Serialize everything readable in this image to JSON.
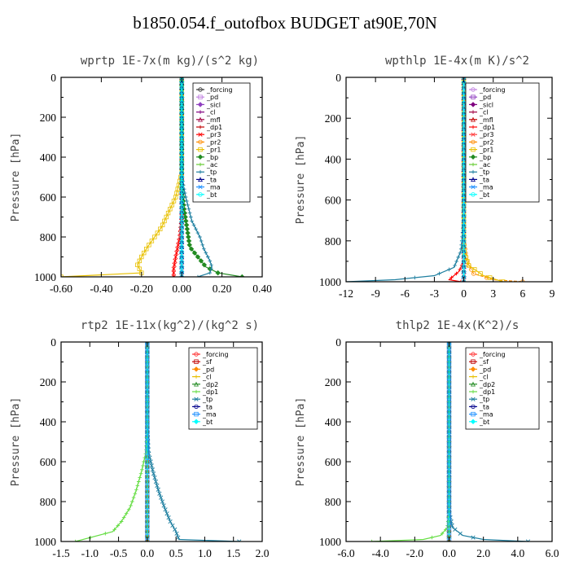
{
  "title": "b1850.054.f_outofbox  BUDGET at90E,70N",
  "chart_data": [
    {
      "type": "line",
      "title": "wprtp  1E-7x(m kg)/(s^2 kg)",
      "ylabel": "Pressure [hPa]",
      "xlim": [
        -0.6,
        0.4
      ],
      "ylim": [
        1000,
        0
      ],
      "xticks": [
        "-0.60",
        "-0.40",
        "-0.20",
        "0.00",
        "0.20",
        "0.40"
      ],
      "yticks": [
        "0",
        "200",
        "400",
        "600",
        "800",
        "1000"
      ],
      "legend_position": "top-right",
      "series": [
        {
          "name": "_forcing",
          "color": "#333333",
          "x": [
            0,
            0
          ],
          "y": [
            0,
            1000
          ]
        },
        {
          "name": "_pd",
          "color": "#c080e0",
          "x": [
            0,
            0
          ],
          "y": [
            0,
            1000
          ]
        },
        {
          "name": "_sicl",
          "color": "#9040c0",
          "x": [
            0,
            0
          ],
          "y": [
            0,
            1000
          ]
        },
        {
          "name": "_cl",
          "color": "#800080",
          "x": [
            0,
            0
          ],
          "y": [
            0,
            1000
          ]
        },
        {
          "name": "_mfl",
          "color": "#a00040",
          "x": [
            0,
            0
          ],
          "y": [
            0,
            1000
          ]
        },
        {
          "name": "_dp1",
          "color": "#c00000",
          "x": [
            0,
            0
          ],
          "y": [
            0,
            1000
          ]
        },
        {
          "name": "_pr3",
          "color": "#ff0000",
          "x": [
            0,
            0,
            -0.01,
            -0.03,
            -0.04,
            -0.04
          ],
          "y": [
            0,
            700,
            800,
            900,
            960,
            1000
          ]
        },
        {
          "name": "_pr2",
          "color": "#ff8c00",
          "x": [
            0,
            0
          ],
          "y": [
            0,
            1000
          ]
        },
        {
          "name": "_pr1",
          "color": "#e8c000",
          "x": [
            0,
            0,
            -0.03,
            -0.1,
            -0.17,
            -0.2,
            -0.22,
            -0.2,
            -0.6
          ],
          "y": [
            0,
            480,
            600,
            750,
            850,
            900,
            940,
            980,
            1000
          ]
        },
        {
          "name": "_bp",
          "color": "#228b22",
          "x": [
            0,
            0,
            0.01,
            0.03,
            0.04,
            0.08,
            0.12,
            0.18,
            0.3
          ],
          "y": [
            0,
            500,
            650,
            780,
            850,
            900,
            950,
            980,
            1000
          ]
        },
        {
          "name": "_ac",
          "color": "#66cc33",
          "x": [
            0,
            0
          ],
          "y": [
            0,
            1000
          ]
        },
        {
          "name": "_tp",
          "color": "#1e7fa0",
          "x": [
            0,
            0,
            0.02,
            0.05,
            0.09,
            0.11,
            0.14,
            0.15,
            0.14,
            0.08
          ],
          "y": [
            0,
            500,
            600,
            720,
            800,
            860,
            920,
            950,
            980,
            1000
          ]
        },
        {
          "name": "_ta",
          "color": "#00008b",
          "x": [
            0,
            0
          ],
          "y": [
            0,
            1000
          ]
        },
        {
          "name": "_ma",
          "color": "#1e90ff",
          "x": [
            0,
            0
          ],
          "y": [
            0,
            1000
          ]
        },
        {
          "name": "_bt",
          "color": "#00ffff",
          "x": [
            0,
            0
          ],
          "y": [
            0,
            1000
          ]
        }
      ]
    },
    {
      "type": "line",
      "title": "wpthlp  1E-4x(m K)/s^2",
      "ylabel": "Pressure [hPa]",
      "xlim": [
        -12,
        9
      ],
      "ylim": [
        1000,
        0
      ],
      "xticks": [
        "-12",
        "-9",
        "-6",
        "-3",
        "0",
        "3",
        "6",
        "9"
      ],
      "yticks": [
        "0",
        "200",
        "400",
        "600",
        "800",
        "1000"
      ],
      "legend_position": "top-right",
      "series": [
        {
          "name": "_forcing",
          "color": "#c080e0",
          "x": [
            0,
            0
          ],
          "y": [
            0,
            1000
          ]
        },
        {
          "name": "_pd",
          "color": "#9040c0",
          "x": [
            0,
            0
          ],
          "y": [
            0,
            1000
          ]
        },
        {
          "name": "_sicl",
          "color": "#800080",
          "x": [
            0,
            0
          ],
          "y": [
            0,
            1000
          ]
        },
        {
          "name": "_cl",
          "color": "#a00040",
          "x": [
            0,
            0
          ],
          "y": [
            0,
            1000
          ]
        },
        {
          "name": "_mfl",
          "color": "#c00000",
          "x": [
            0,
            0
          ],
          "y": [
            0,
            1000
          ]
        },
        {
          "name": "_dp1",
          "color": "#ff0000",
          "x": [
            0,
            0,
            -0.5,
            -1.5,
            -0.3
          ],
          "y": [
            0,
            900,
            950,
            990,
            1000
          ]
        },
        {
          "name": "_pr3",
          "color": "#ff4040",
          "x": [
            0,
            0
          ],
          "y": [
            0,
            1000
          ]
        },
        {
          "name": "_pr2",
          "color": "#ff8c00",
          "x": [
            0,
            0,
            0.3,
            1,
            3,
            6
          ],
          "y": [
            0,
            800,
            900,
            960,
            990,
            1000
          ]
        },
        {
          "name": "_pr1",
          "color": "#e8c000",
          "x": [
            0,
            0,
            0.5,
            2,
            4
          ],
          "y": [
            0,
            850,
            920,
            970,
            1000
          ]
        },
        {
          "name": "_bp",
          "color": "#228b22",
          "x": [
            0,
            0
          ],
          "y": [
            0,
            1000
          ]
        },
        {
          "name": "_ac",
          "color": "#66cc33",
          "x": [
            0,
            0
          ],
          "y": [
            0,
            1000
          ]
        },
        {
          "name": "_tp",
          "color": "#1e7fa0",
          "x": [
            0,
            0,
            -0.3,
            -1,
            -3,
            -7,
            -12
          ],
          "y": [
            0,
            700,
            850,
            930,
            970,
            990,
            1000
          ]
        },
        {
          "name": "_ta",
          "color": "#00008b",
          "x": [
            0,
            0
          ],
          "y": [
            0,
            1000
          ]
        },
        {
          "name": "_ma",
          "color": "#1e90ff",
          "x": [
            0,
            0
          ],
          "y": [
            0,
            1000
          ]
        },
        {
          "name": "_bt",
          "color": "#00ffff",
          "x": [
            0,
            0
          ],
          "y": [
            0,
            1000
          ]
        }
      ]
    },
    {
      "type": "line",
      "title": "rtp2  1E-11x(kg^2)/(kg^2 s)",
      "ylabel": "Pressure [hPa]",
      "xlim": [
        -1.5,
        2.0
      ],
      "ylim": [
        1000,
        0
      ],
      "xticks": [
        "-1.5",
        "-1.0",
        "-0.5",
        "0.0",
        "0.5",
        "1.0",
        "1.5",
        "2.0"
      ],
      "yticks": [
        "0",
        "200",
        "400",
        "600",
        "800",
        "1000"
      ],
      "legend_position": "top-right",
      "series": [
        {
          "name": "_forcing",
          "color": "#ff3030",
          "x": [
            0,
            0
          ],
          "y": [
            0,
            1000
          ]
        },
        {
          "name": "_sf",
          "color": "#c00000",
          "x": [
            0,
            0
          ],
          "y": [
            0,
            1000
          ]
        },
        {
          "name": "_pd",
          "color": "#ff8c00",
          "x": [
            0,
            0
          ],
          "y": [
            0,
            1000
          ]
        },
        {
          "name": "_cl",
          "color": "#e8c000",
          "x": [
            0,
            0
          ],
          "y": [
            0,
            1000
          ]
        },
        {
          "name": "_dp2",
          "color": "#228b22",
          "x": [
            0,
            0
          ],
          "y": [
            0,
            1000
          ]
        },
        {
          "name": "_dp1",
          "color": "#66dd44",
          "x": [
            0,
            0,
            -0.02,
            -0.1,
            -0.2,
            -0.3,
            -0.45,
            -0.6,
            -1.25
          ],
          "y": [
            0,
            400,
            550,
            650,
            750,
            830,
            900,
            950,
            1000
          ]
        },
        {
          "name": "_tp",
          "color": "#1e7fa0",
          "x": [
            0,
            0,
            0.02,
            0.1,
            0.2,
            0.3,
            0.4,
            0.5,
            0.55,
            1.6
          ],
          "y": [
            0,
            400,
            550,
            650,
            750,
            830,
            900,
            950,
            990,
            1000
          ]
        },
        {
          "name": "_ta",
          "color": "#00008b",
          "x": [
            0,
            0
          ],
          "y": [
            0,
            1000
          ]
        },
        {
          "name": "_ma",
          "color": "#1e90ff",
          "x": [
            0,
            0
          ],
          "y": [
            0,
            1000
          ]
        },
        {
          "name": "_bt",
          "color": "#00ffff",
          "x": [
            0,
            0
          ],
          "y": [
            0,
            1000
          ]
        }
      ]
    },
    {
      "type": "line",
      "title": "thlp2  1E-4x(K^2)/s",
      "ylabel": "Pressure [hPa]",
      "xlim": [
        -6,
        6
      ],
      "ylim": [
        1000,
        0
      ],
      "xticks": [
        "-6.0",
        "-4.0",
        "-2.0",
        "0.0",
        "2.0",
        "4.0",
        "6.0"
      ],
      "yticks": [
        "0",
        "200",
        "400",
        "600",
        "800",
        "1000"
      ],
      "legend_position": "top-right",
      "series": [
        {
          "name": "_forcing",
          "color": "#ff3030",
          "x": [
            0,
            0
          ],
          "y": [
            0,
            1000
          ]
        },
        {
          "name": "_sf",
          "color": "#c00000",
          "x": [
            0,
            0
          ],
          "y": [
            0,
            1000
          ]
        },
        {
          "name": "_pd",
          "color": "#ff8c00",
          "x": [
            0,
            0
          ],
          "y": [
            0,
            1000
          ]
        },
        {
          "name": "_cl",
          "color": "#e8c000",
          "x": [
            0,
            0
          ],
          "y": [
            0,
            1000
          ]
        },
        {
          "name": "_dp2",
          "color": "#228b22",
          "x": [
            0,
            0
          ],
          "y": [
            0,
            1000
          ]
        },
        {
          "name": "_dp1",
          "color": "#66dd44",
          "x": [
            0,
            0,
            -0.1,
            -0.5,
            -1.5,
            -4.5
          ],
          "y": [
            0,
            850,
            930,
            970,
            990,
            1000
          ]
        },
        {
          "name": "_tp",
          "color": "#1e7fa0",
          "x": [
            0,
            0,
            0.2,
            0.8,
            2,
            4.6
          ],
          "y": [
            0,
            850,
            930,
            970,
            990,
            1000
          ]
        },
        {
          "name": "_ta",
          "color": "#00008b",
          "x": [
            0,
            0
          ],
          "y": [
            0,
            1000
          ]
        },
        {
          "name": "_ma",
          "color": "#1e90ff",
          "x": [
            0,
            0
          ],
          "y": [
            0,
            1000
          ]
        },
        {
          "name": "_bt",
          "color": "#00ffff",
          "x": [
            0,
            0
          ],
          "y": [
            0,
            1000
          ]
        }
      ]
    }
  ]
}
